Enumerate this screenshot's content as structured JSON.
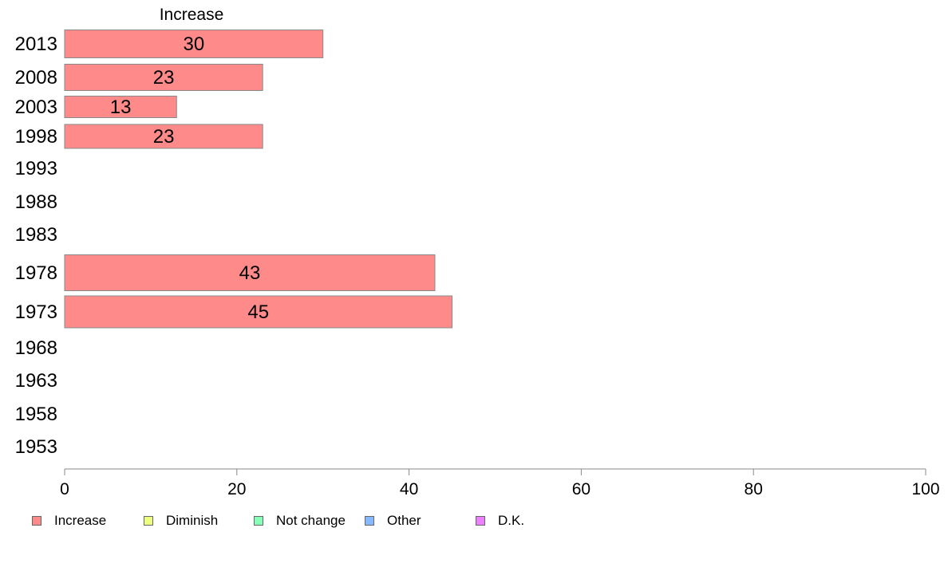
{
  "chart_data": {
    "type": "bar",
    "orientation": "horizontal",
    "title": "Increase",
    "categories": [
      "2013",
      "2008",
      "2003",
      "1998",
      "1993",
      "1988",
      "1983",
      "1978",
      "1973",
      "1968",
      "1963",
      "1958",
      "1953"
    ],
    "series": [
      {
        "name": "Increase",
        "color": "#ff8a8a",
        "values": [
          30,
          23,
          13,
          23,
          null,
          null,
          null,
          43,
          45,
          null,
          null,
          null,
          null
        ],
        "data_labels": [
          "30",
          "23",
          "13",
          "23",
          "",
          "",
          "",
          "43",
          "45",
          "",
          "",
          "",
          ""
        ]
      }
    ],
    "xlim": [
      0,
      100
    ],
    "x_ticks": [
      "0",
      "20",
      "40",
      "60",
      "80",
      "100"
    ],
    "grid": false,
    "legend_position": "bottom",
    "legend": [
      {
        "label": "Increase",
        "color": "#ff8a8a"
      },
      {
        "label": "Diminish",
        "color": "#eeff80"
      },
      {
        "label": "Not change",
        "color": "#88ffb8"
      },
      {
        "label": "Other",
        "color": "#88b8ff"
      },
      {
        "label": "D.K.",
        "color": "#ee80ff"
      }
    ]
  }
}
